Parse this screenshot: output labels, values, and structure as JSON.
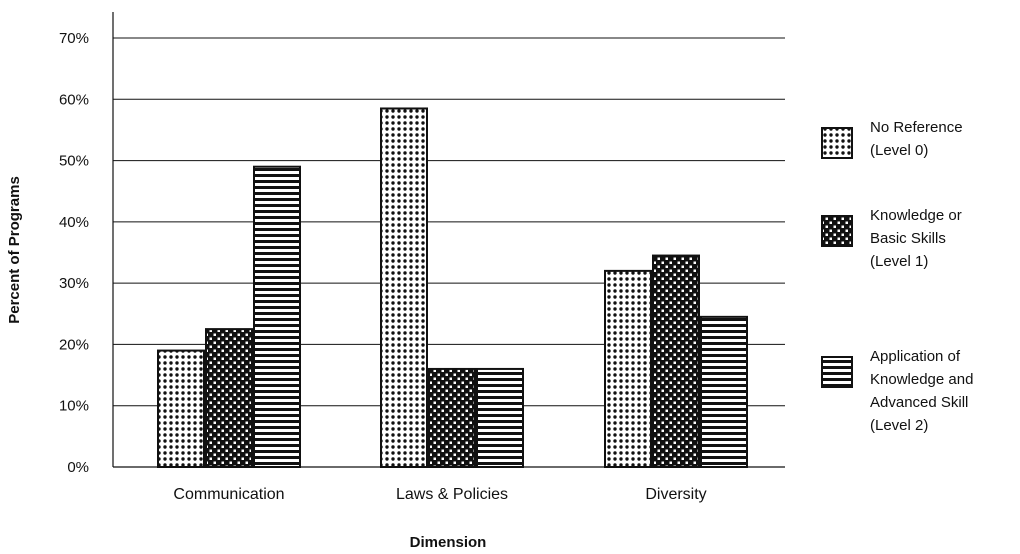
{
  "chart_data": {
    "type": "bar",
    "title": "",
    "xlabel": "Dimension",
    "ylabel": "Percent of Programs",
    "ylim": [
      0,
      70
    ],
    "yticks": [
      "0%",
      "10%",
      "20%",
      "30%",
      "40%",
      "50%",
      "60%",
      "70%"
    ],
    "grid": true,
    "legend_position": "right",
    "categories": [
      "Communication",
      "Laws & Policies",
      "Diversity"
    ],
    "series": [
      {
        "name": "No Reference (Level 0)",
        "legend_lines": [
          "No Reference",
          "(Level 0)"
        ],
        "pattern": "dots",
        "values": [
          19,
          58.5,
          32
        ]
      },
      {
        "name": "Knowledge or Basic Skills (Level 1)",
        "legend_lines": [
          "Knowledge or",
          "Basic Skills",
          "(Level 1)"
        ],
        "pattern": "checker",
        "values": [
          22.5,
          16,
          34.5
        ]
      },
      {
        "name": "Application of Knowledge and Advanced Skill (Level 2)",
        "legend_lines": [
          "Application of",
          "Knowledge and",
          "Advanced Skill",
          "(Level 2)"
        ],
        "pattern": "stripes",
        "values": [
          49,
          16,
          24.5
        ]
      }
    ]
  }
}
